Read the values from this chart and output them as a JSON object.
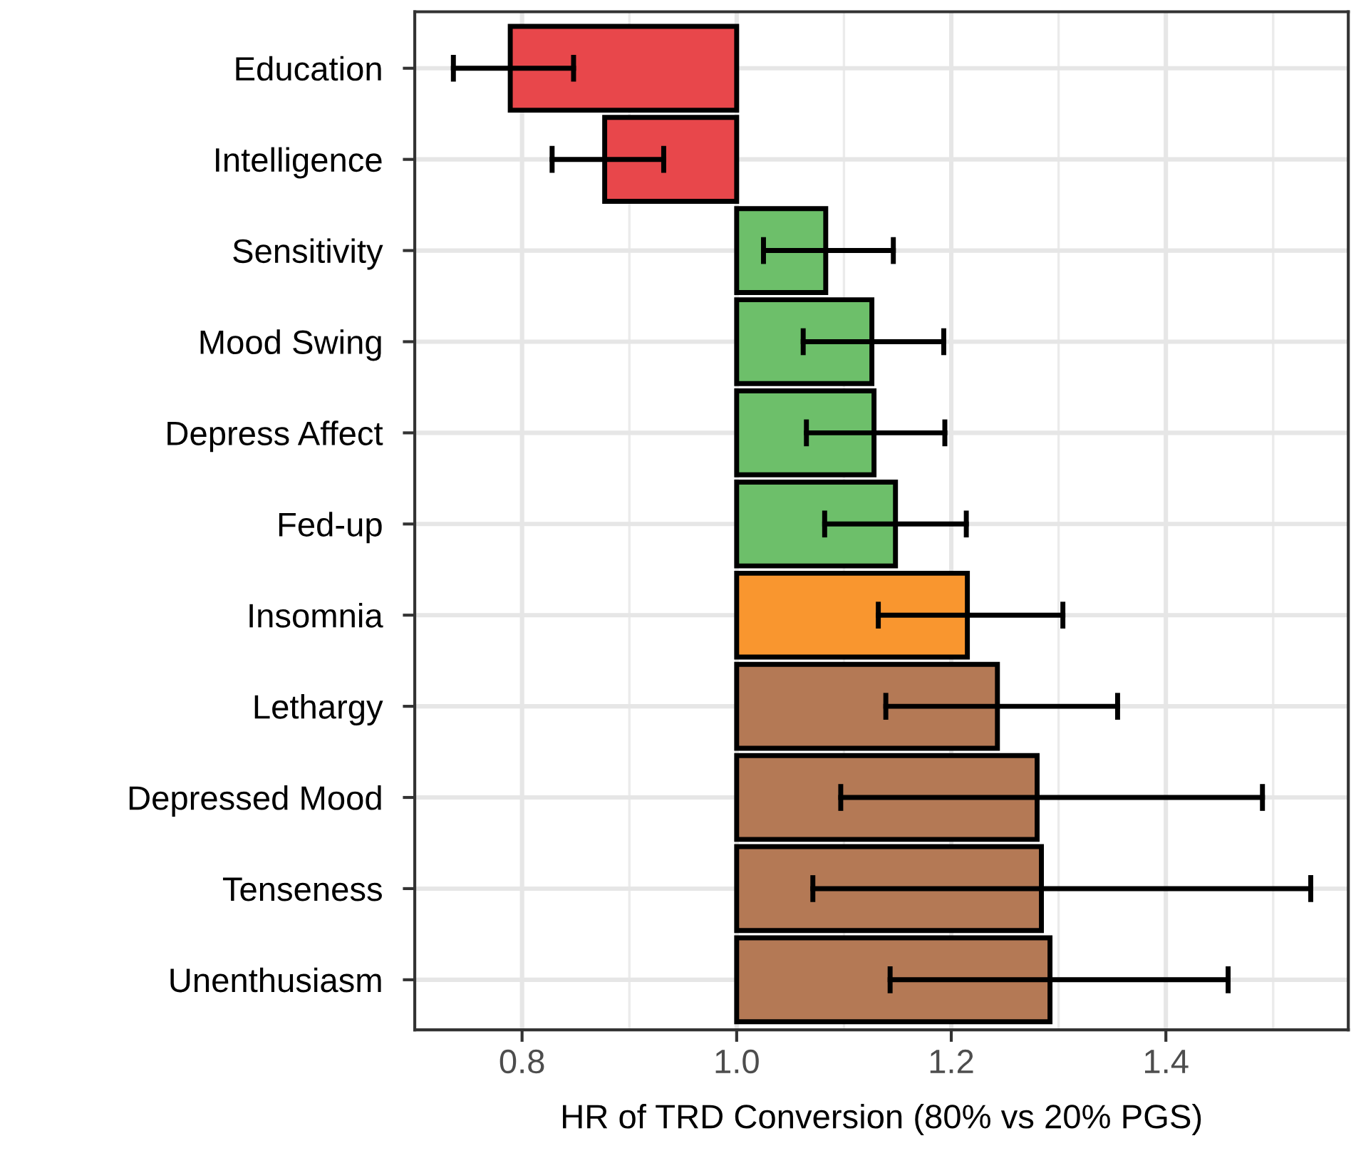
{
  "chart_data": {
    "type": "bar",
    "orientation": "horizontal",
    "xlabel": "HR of TRD Conversion (80% vs 20% PGS)",
    "categories": [
      "Education",
      "Intelligence",
      "Sensitivity",
      "Mood Swing",
      "Depress Affect",
      "Fed-up",
      "Insomnia",
      "Lethargy",
      "Depressed Mood",
      "Tenseness",
      "Unenthusiasm"
    ],
    "base": [
      1.0,
      1.0,
      1.0,
      1.0,
      1.0,
      1.0,
      1.0,
      1.0,
      1.0,
      1.0,
      1.0
    ],
    "values": [
      -0.211,
      -0.123,
      0.083,
      0.126,
      0.128,
      0.148,
      0.215,
      0.243,
      0.28,
      0.284,
      0.292
    ],
    "colors": [
      "#e8474b",
      "#e8474b",
      "#6dbf6a",
      "#6dbf6a",
      "#6dbf6a",
      "#6dbf6a",
      "#f9962f",
      "#b47955",
      "#b47955",
      "#b47955",
      "#b47955"
    ],
    "errors": [
      [
        0.736,
        0.848
      ],
      [
        0.828,
        0.932
      ],
      [
        1.025,
        1.146
      ],
      [
        1.062,
        1.193
      ],
      [
        1.065,
        1.194
      ],
      [
        1.082,
        1.214
      ],
      [
        1.132,
        1.304
      ],
      [
        1.139,
        1.355
      ],
      [
        1.097,
        1.49
      ],
      [
        1.071,
        1.535
      ],
      [
        1.143,
        1.458
      ]
    ],
    "xlim": [
      0.7,
      1.57
    ],
    "xticks": [
      {
        "value": 0.8,
        "label": "0.8"
      },
      {
        "value": 1.0,
        "label": "1.0"
      },
      {
        "value": 1.2,
        "label": "1.2"
      },
      {
        "value": 1.4,
        "label": "1.4"
      }
    ],
    "grid": true
  }
}
